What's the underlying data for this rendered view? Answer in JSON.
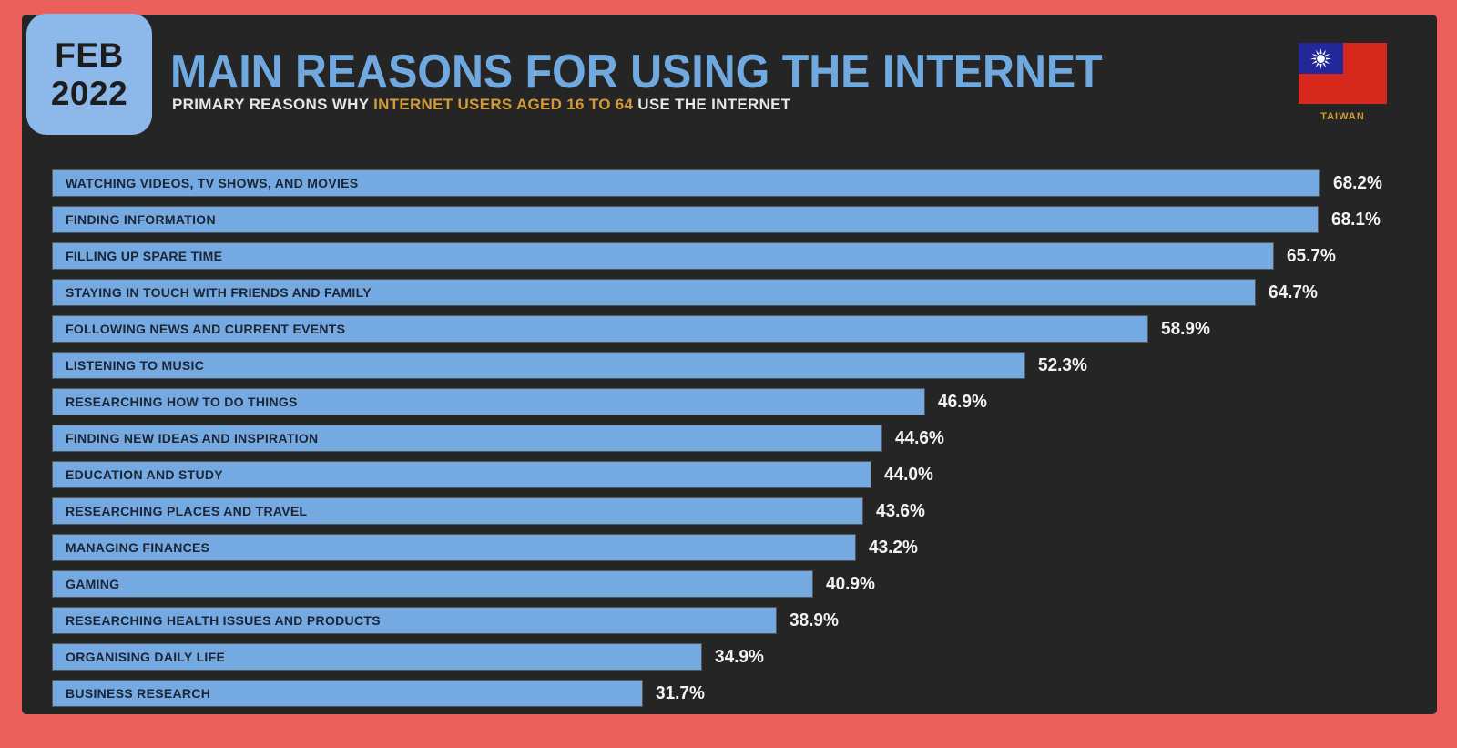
{
  "header": {
    "date_badge": {
      "line1": "FEB",
      "line2": "2022"
    },
    "title": "MAIN REASONS FOR USING THE INTERNET",
    "subtitle_prefix": "PRIMARY REASONS WHY ",
    "subtitle_highlight": "INTERNET USERS AGED 16 TO 64",
    "subtitle_suffix": " USE THE INTERNET",
    "country_label": "TAIWAN"
  },
  "colors": {
    "frame_background": "#ec605c",
    "panel_background": "#252525",
    "bar_fill": "#74a9e1",
    "bar_label_text": "#1b2534",
    "value_label_text": "#f4f3f1",
    "title_text": "#6fa9df",
    "subtitle_text": "#e9e7e4",
    "highlight_orange": "#d39a37",
    "badge_background": "#8cb9e9",
    "flag_red": "#d7281d",
    "flag_blue": "#22289a"
  },
  "chart_data": {
    "type": "bar",
    "orientation": "horizontal",
    "title": "MAIN REASONS FOR USING THE INTERNET",
    "subtitle": "PRIMARY REASONS WHY INTERNET USERS AGED 16 TO 64 USE THE INTERNET",
    "region": "TAIWAN",
    "period": "FEB 2022",
    "unit": "%",
    "xlim": [
      0,
      70
    ],
    "grid": false,
    "legend": false,
    "bar_color": "#74a9e1",
    "categories": [
      "WATCHING VIDEOS, TV SHOWS, AND MOVIES",
      "FINDING INFORMATION",
      "FILLING UP SPARE TIME",
      "STAYING IN TOUCH WITH FRIENDS AND FAMILY",
      "FOLLOWING NEWS AND CURRENT EVENTS",
      "LISTENING TO MUSIC",
      "RESEARCHING HOW TO DO THINGS",
      "FINDING NEW IDEAS AND INSPIRATION",
      "EDUCATION AND STUDY",
      "RESEARCHING PLACES AND TRAVEL",
      "MANAGING FINANCES",
      "GAMING",
      "RESEARCHING HEALTH ISSUES AND PRODUCTS",
      "ORGANISING DAILY LIFE",
      "BUSINESS RESEARCH"
    ],
    "values": [
      68.2,
      68.1,
      65.7,
      64.7,
      58.9,
      52.3,
      46.9,
      44.6,
      44.0,
      43.6,
      43.2,
      40.9,
      38.9,
      34.9,
      31.7
    ],
    "value_labels": [
      "68.2%",
      "68.1%",
      "65.7%",
      "64.7%",
      "58.9%",
      "52.3%",
      "46.9%",
      "44.6%",
      "44.0%",
      "43.6%",
      "43.2%",
      "40.9%",
      "38.9%",
      "34.9%",
      "31.7%"
    ]
  }
}
